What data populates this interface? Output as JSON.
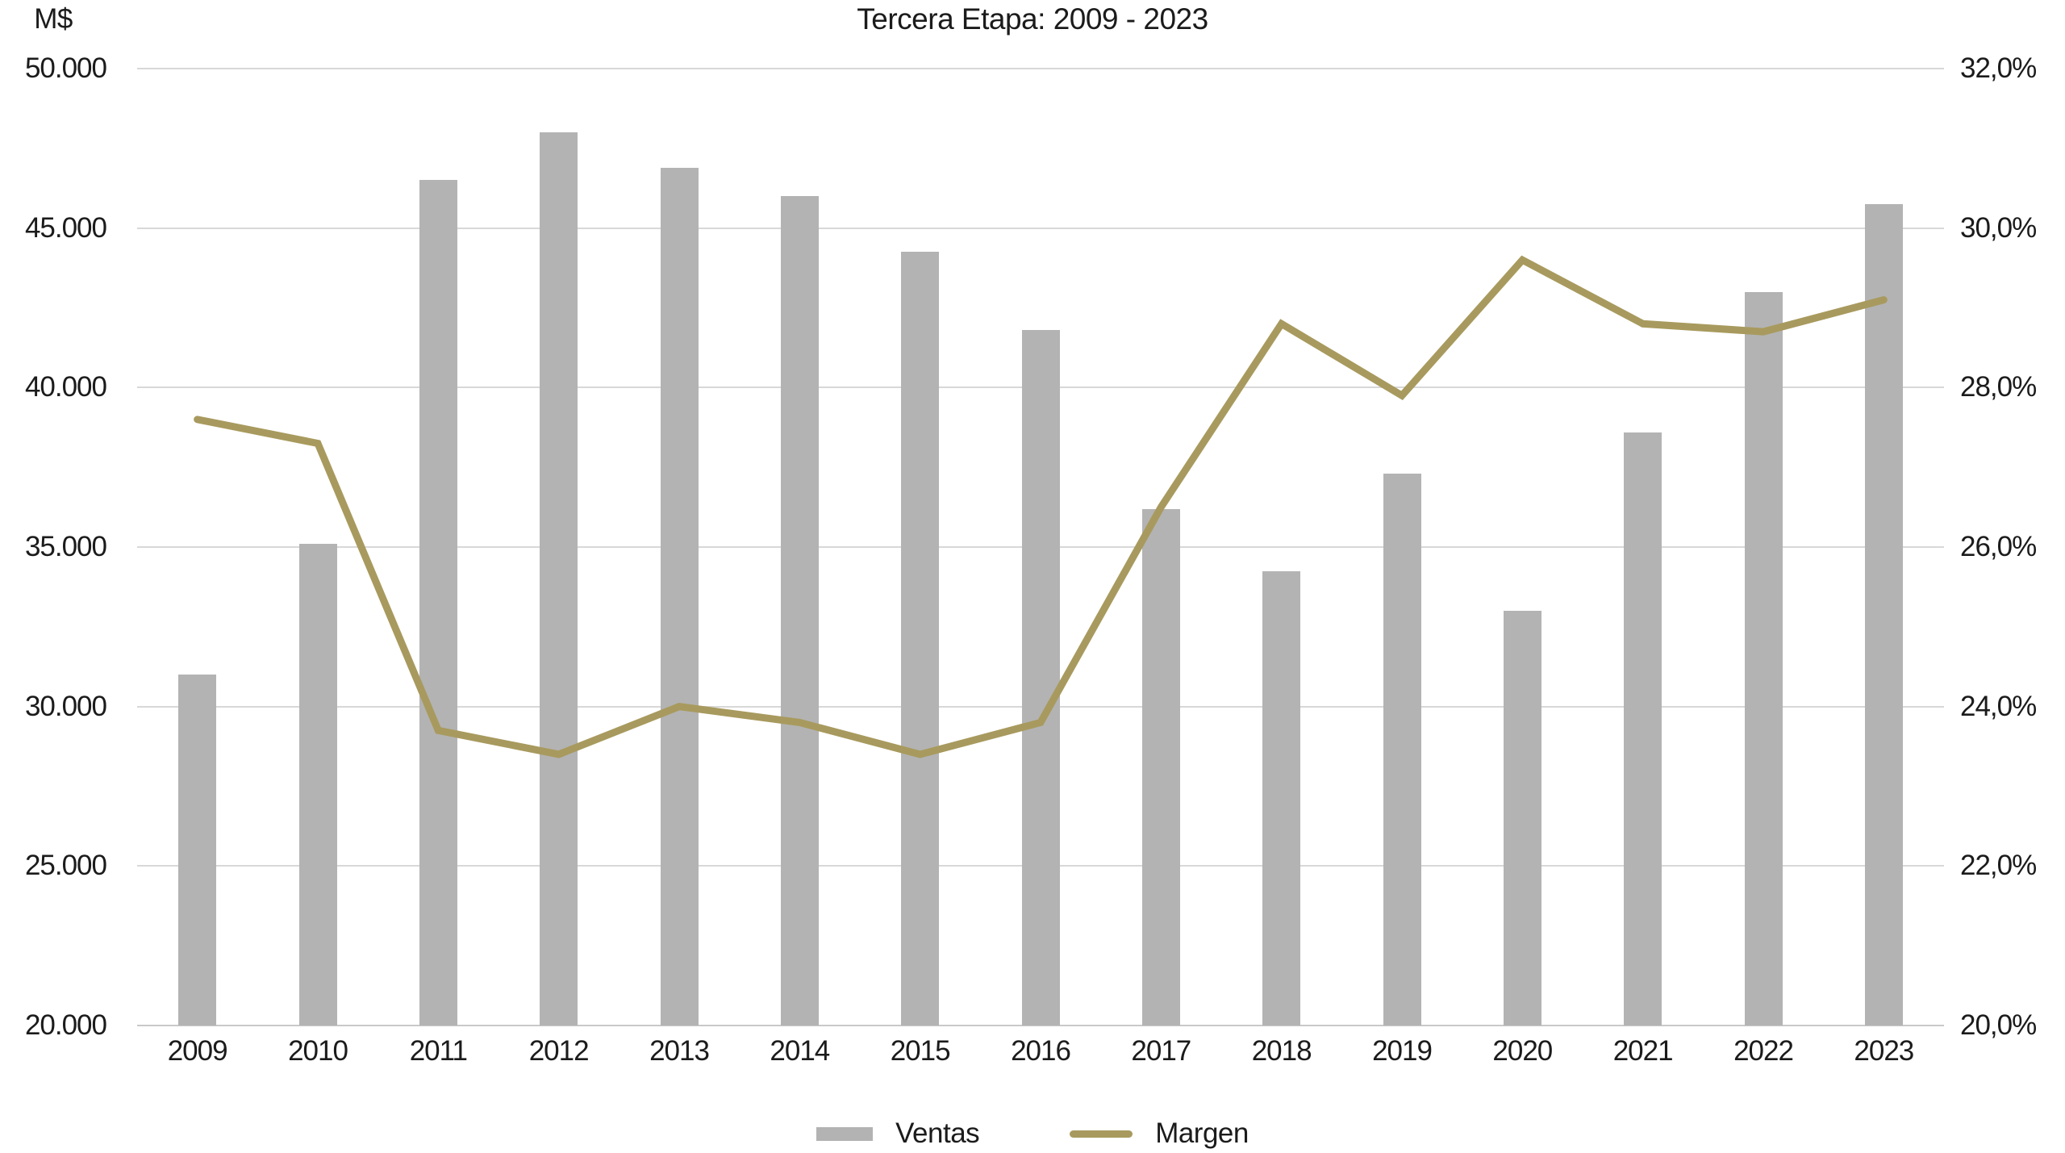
{
  "colors": {
    "bar": "#B3B3B3",
    "line": "#A89A5E",
    "grid": "#D8D8D8",
    "axis_line": "#C9C9C9",
    "text": "#1B1B1B"
  },
  "chart_data": {
    "type": "combo",
    "title": "Tercera Etapa: 2009 - 2023",
    "categories": [
      "2009",
      "2010",
      "2011",
      "2012",
      "2013",
      "2014",
      "2015",
      "2016",
      "2017",
      "2018",
      "2019",
      "2020",
      "2021",
      "2022",
      "2023"
    ],
    "series": [
      {
        "name": "Ventas",
        "type": "bar",
        "axis": "left",
        "values": [
          31000,
          35100,
          46500,
          48000,
          46900,
          46000,
          44250,
          41800,
          36200,
          34250,
          37300,
          33000,
          38600,
          43000,
          45750
        ]
      },
      {
        "name": "Margen",
        "type": "line",
        "axis": "right",
        "values": [
          27.6,
          27.3,
          23.7,
          23.4,
          24.0,
          23.8,
          23.4,
          23.8,
          26.5,
          28.8,
          27.9,
          29.6,
          28.8,
          28.7,
          29.1
        ]
      }
    ],
    "left_axis": {
      "label": "M$",
      "min": 20000,
      "max": 50000,
      "step": 5000,
      "tick_labels": [
        "50.000",
        "45.000",
        "40.000",
        "35.000",
        "30.000",
        "25.000",
        "20.000"
      ]
    },
    "right_axis": {
      "min": 20,
      "max": 32,
      "step": 2,
      "tick_labels": [
        "32,0%",
        "30,0%",
        "28,0%",
        "26,0%",
        "24,0%",
        "22,0%",
        "20,0%"
      ]
    },
    "grid": true,
    "legend_position": "bottom"
  }
}
